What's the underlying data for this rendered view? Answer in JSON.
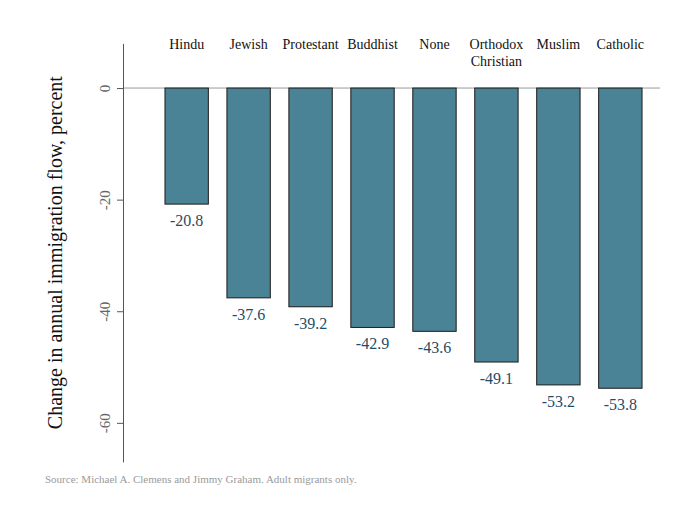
{
  "chart_data": {
    "type": "bar",
    "categories": [
      "Hindu",
      "Jewish",
      "Protestant",
      "Buddhist",
      "None",
      "Orthodox Christian",
      "Muslim",
      "Catholic"
    ],
    "values": [
      -20.8,
      -37.6,
      -39.2,
      -42.9,
      -43.6,
      -49.1,
      -53.2,
      -53.8
    ],
    "color": "#4a8396",
    "y_label": "Change in annual immigration flow, percent",
    "ylim": [
      -67,
      8
    ],
    "yticks": [
      0,
      -20,
      -40,
      -60
    ],
    "data_labels": true,
    "note": "Source: Michael A. Clemens and Jimmy Graham. Adult migrants only."
  }
}
